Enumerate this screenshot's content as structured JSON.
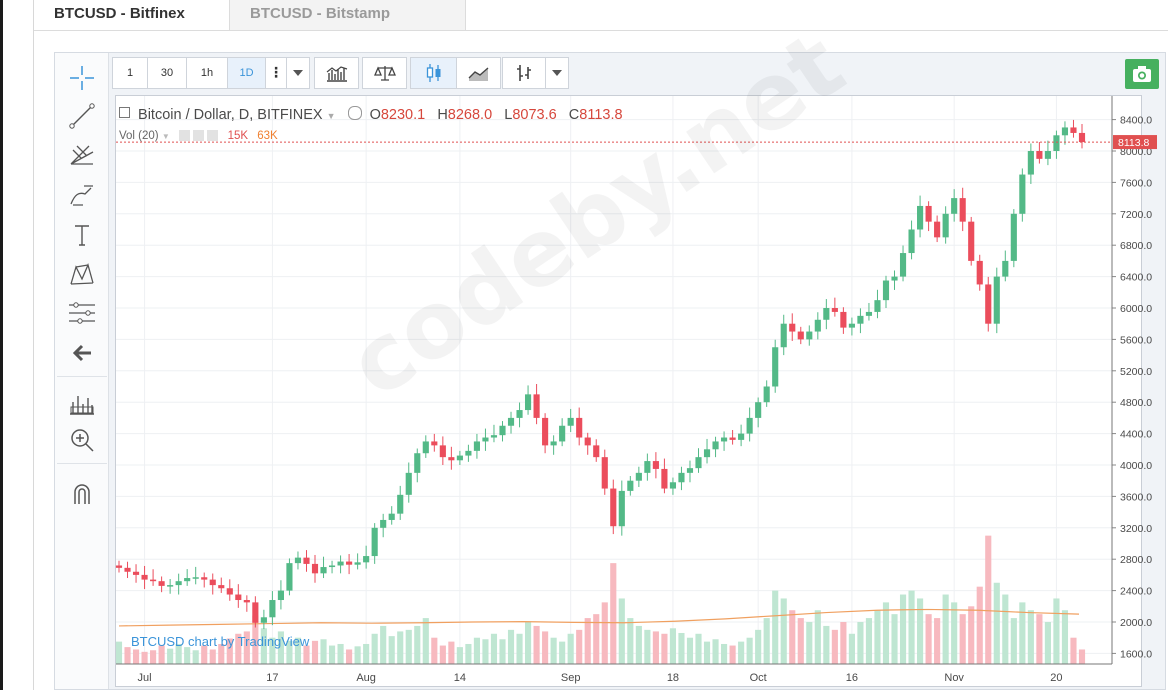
{
  "tabs": [
    {
      "label": "BTCUSD - Bitfinex",
      "active": true
    },
    {
      "label": "BTCUSD - Bitstamp",
      "active": false
    }
  ],
  "toolbar": {
    "intervals": [
      "1",
      "30",
      "1h",
      "1D"
    ],
    "selected_interval": "1D",
    "more_icon": "kebab-icon",
    "dropdown_icon": "caret-down-icon",
    "buttons": [
      "indicators-icon",
      "compare-icon",
      "candles-icon",
      "area-icon",
      "bars-icon"
    ]
  },
  "sidebar_icons": [
    "crosshair-icon",
    "trend-line-icon",
    "fib-icon",
    "brush-icon",
    "text-icon",
    "pattern-icon",
    "measure-icon",
    "back-arrow-icon",
    "indicators-panel-icon",
    "zoom-in-icon",
    "magnet-icon"
  ],
  "legend": {
    "symbol": "Bitcoin / Dollar, D, BITFINEX",
    "o_label": "O",
    "o_value": "8230.1",
    "h_label": "H",
    "h_value": "8268.0",
    "l_label": "L",
    "l_value": "8073.6",
    "c_label": "C",
    "c_value": "8113.8"
  },
  "volume_legend": {
    "label": "Vol (20)",
    "v1": "15K",
    "v2": "63K"
  },
  "credit": "BTCUSD chart by TradingView",
  "watermark": "codeby.net",
  "colors": {
    "up": "#53b987",
    "down": "#eb4d5c",
    "vol_up": "#bfe6d2",
    "vol_down": "#f7b9bf",
    "ma": "#f0a060",
    "last_price": "#e05050"
  },
  "chart_data": {
    "type": "candlestick",
    "price_axis": {
      "ticks": [
        "8400.0",
        "8000.0",
        "7600.0",
        "7200.0",
        "6800.0",
        "6400.0",
        "6000.0",
        "5600.0",
        "5200.0",
        "4800.0",
        "4400.0",
        "4000.0",
        "3600.0",
        "3200.0",
        "2800.0",
        "2400.0",
        "2000.0",
        "1600.0"
      ],
      "range": [
        1500,
        8650
      ]
    },
    "time_axis": {
      "ticks": [
        "Jul",
        "17",
        "Aug",
        "14",
        "Sep",
        "18",
        "Oct",
        "16",
        "Nov",
        "20"
      ]
    },
    "last_price": "8113.8",
    "volume_ma": [
      1950,
      1960,
      1970,
      1980,
      1990,
      1985,
      1990,
      2000,
      2005,
      1995,
      1990,
      2010,
      2040,
      2080,
      2120,
      2150,
      2160,
      2150,
      2120,
      2100
    ],
    "closes": [
      2690,
      2640,
      2600,
      2540,
      2520,
      2460,
      2470,
      2520,
      2560,
      2570,
      2540,
      2470,
      2430,
      2350,
      2280,
      2250,
      1990,
      2060,
      2280,
      2400,
      2750,
      2820,
      2740,
      2620,
      2700,
      2720,
      2770,
      2730,
      2760,
      2840,
      3200,
      3300,
      3380,
      3620,
      3900,
      4150,
      4300,
      4250,
      4100,
      4060,
      4120,
      4180,
      4300,
      4350,
      4380,
      4500,
      4600,
      4700,
      4900,
      4600,
      4250,
      4300,
      4500,
      4600,
      4350,
      4250,
      4100,
      3700,
      3220,
      3670,
      3800,
      3900,
      4050,
      3950,
      3700,
      3780,
      3900,
      3960,
      4100,
      4200,
      4300,
      4350,
      4320,
      4400,
      4600,
      4800,
      5000,
      5500,
      5800,
      5700,
      5600,
      5700,
      5850,
      6000,
      5950,
      5750,
      5800,
      5900,
      5950,
      6100,
      6350,
      6400,
      6700,
      7000,
      7300,
      7100,
      6900,
      7200,
      7400,
      7100,
      6600,
      6300,
      5800,
      6400,
      6600,
      7200,
      7700,
      8000,
      7900,
      8000,
      8200,
      8300,
      8230,
      8114
    ],
    "volumes": [
      1750,
      1680,
      1650,
      1620,
      1640,
      1700,
      1660,
      1720,
      1680,
      1640,
      1700,
      1650,
      1720,
      1790,
      1850,
      1880,
      2080,
      1920,
      1800,
      1880,
      1760,
      1800,
      1700,
      1760,
      1780,
      1700,
      1720,
      1650,
      1690,
      1720,
      1850,
      1950,
      1820,
      1880,
      1900,
      1950,
      2050,
      1800,
      1700,
      1750,
      1680,
      1720,
      1800,
      1780,
      1850,
      1780,
      1900,
      1850,
      2000,
      1950,
      1880,
      1800,
      1750,
      1850,
      1900,
      2050,
      2100,
      2250,
      2750,
      2300,
      2050,
      1950,
      1900,
      1880,
      1850,
      1920,
      1860,
      1800,
      1850,
      1750,
      1780,
      1720,
      1700,
      1750,
      1800,
      1900,
      2050,
      2400,
      2300,
      2150,
      2050,
      2000,
      2150,
      1950,
      1900,
      2000,
      1850,
      2000,
      2050,
      2150,
      2250,
      2100,
      2350,
      2400,
      2300,
      2100,
      2050,
      2350,
      2250,
      2100,
      2200,
      2450,
      3100,
      2500,
      2350,
      2050,
      2250,
      2150,
      2100,
      2000,
      2300,
      2150,
      1800,
      1650
    ]
  }
}
